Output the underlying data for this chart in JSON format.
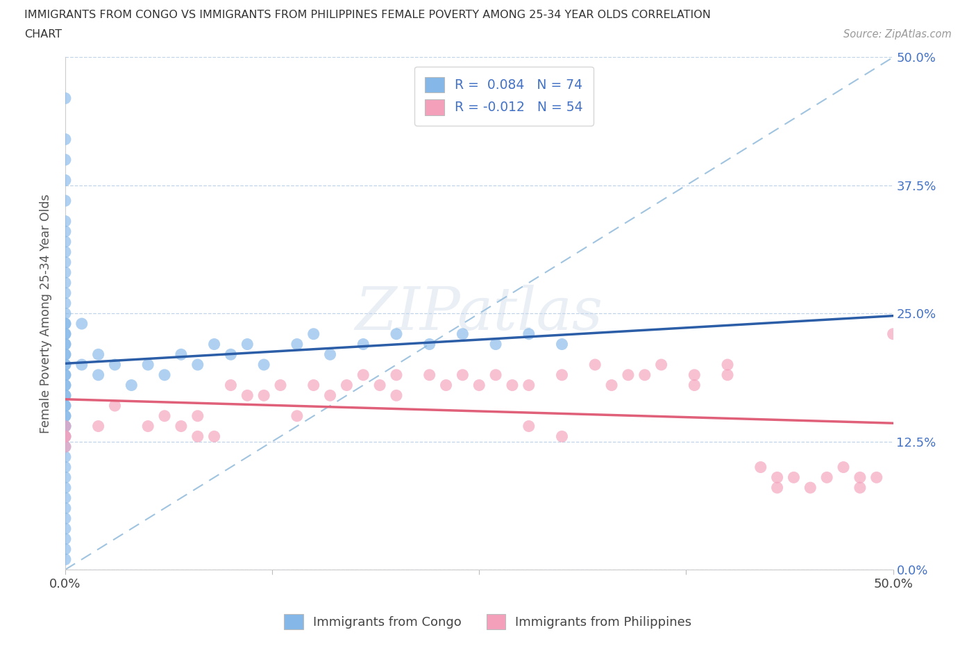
{
  "title_line1": "IMMIGRANTS FROM CONGO VS IMMIGRANTS FROM PHILIPPINES FEMALE POVERTY AMONG 25-34 YEAR OLDS CORRELATION",
  "title_line2": "CHART",
  "source": "Source: ZipAtlas.com",
  "ylabel": "Female Poverty Among 25-34 Year Olds",
  "xlim": [
    0,
    0.5
  ],
  "ylim": [
    0,
    0.5
  ],
  "r_congo": 0.084,
  "n_congo": 74,
  "r_philippines": -0.012,
  "n_philippines": 54,
  "congo_color": "#85b8e8",
  "philippines_color": "#f4a0bb",
  "congo_line_color": "#2c5ea8",
  "philippines_line_color": "#e0607a",
  "dash_color": "#a0c4e0",
  "legend_label_congo": "Immigrants from Congo",
  "legend_label_philippines": "Immigrants from Philippines",
  "congo_x": [
    0.0,
    0.0,
    0.0,
    0.0,
    0.0,
    0.0,
    0.0,
    0.0,
    0.0,
    0.0,
    0.0,
    0.0,
    0.0,
    0.0,
    0.0,
    0.0,
    0.0,
    0.0,
    0.0,
    0.0,
    0.0,
    0.0,
    0.0,
    0.0,
    0.0,
    0.0,
    0.0,
    0.0,
    0.0,
    0.0,
    0.0,
    0.0,
    0.0,
    0.0,
    0.0,
    0.0,
    0.0,
    0.0,
    0.0,
    0.0,
    0.0,
    0.0,
    0.0,
    0.0,
    0.0,
    0.0,
    0.0,
    0.0,
    0.0,
    0.0,
    0.01,
    0.01,
    0.02,
    0.02,
    0.03,
    0.04,
    0.05,
    0.06,
    0.07,
    0.08,
    0.09,
    0.1,
    0.11,
    0.12,
    0.14,
    0.15,
    0.16,
    0.18,
    0.2,
    0.22,
    0.24,
    0.26,
    0.28,
    0.3
  ],
  "congo_y": [
    0.46,
    0.42,
    0.4,
    0.38,
    0.36,
    0.34,
    0.33,
    0.32,
    0.31,
    0.3,
    0.29,
    0.28,
    0.27,
    0.26,
    0.25,
    0.24,
    0.24,
    0.23,
    0.23,
    0.22,
    0.22,
    0.21,
    0.21,
    0.2,
    0.2,
    0.19,
    0.19,
    0.18,
    0.18,
    0.17,
    0.17,
    0.16,
    0.16,
    0.15,
    0.15,
    0.14,
    0.14,
    0.13,
    0.12,
    0.11,
    0.1,
    0.09,
    0.08,
    0.07,
    0.06,
    0.05,
    0.04,
    0.03,
    0.02,
    0.01,
    0.24,
    0.2,
    0.21,
    0.19,
    0.2,
    0.18,
    0.2,
    0.19,
    0.21,
    0.2,
    0.22,
    0.21,
    0.22,
    0.2,
    0.22,
    0.23,
    0.21,
    0.22,
    0.23,
    0.22,
    0.23,
    0.22,
    0.23,
    0.22
  ],
  "philippines_x": [
    0.0,
    0.0,
    0.0,
    0.0,
    0.02,
    0.03,
    0.05,
    0.06,
    0.07,
    0.08,
    0.08,
    0.09,
    0.1,
    0.11,
    0.12,
    0.13,
    0.14,
    0.15,
    0.16,
    0.17,
    0.18,
    0.19,
    0.2,
    0.2,
    0.22,
    0.23,
    0.24,
    0.25,
    0.26,
    0.27,
    0.28,
    0.28,
    0.3,
    0.3,
    0.32,
    0.33,
    0.34,
    0.35,
    0.36,
    0.38,
    0.38,
    0.4,
    0.4,
    0.42,
    0.43,
    0.43,
    0.44,
    0.45,
    0.46,
    0.47,
    0.48,
    0.48,
    0.49,
    0.5
  ],
  "philippines_y": [
    0.14,
    0.13,
    0.13,
    0.12,
    0.14,
    0.16,
    0.14,
    0.15,
    0.14,
    0.15,
    0.13,
    0.13,
    0.18,
    0.17,
    0.17,
    0.18,
    0.15,
    0.18,
    0.17,
    0.18,
    0.19,
    0.18,
    0.19,
    0.17,
    0.19,
    0.18,
    0.19,
    0.18,
    0.19,
    0.18,
    0.18,
    0.14,
    0.13,
    0.19,
    0.2,
    0.18,
    0.19,
    0.19,
    0.2,
    0.19,
    0.18,
    0.19,
    0.2,
    0.1,
    0.09,
    0.08,
    0.09,
    0.08,
    0.09,
    0.1,
    0.08,
    0.09,
    0.09,
    0.23
  ]
}
